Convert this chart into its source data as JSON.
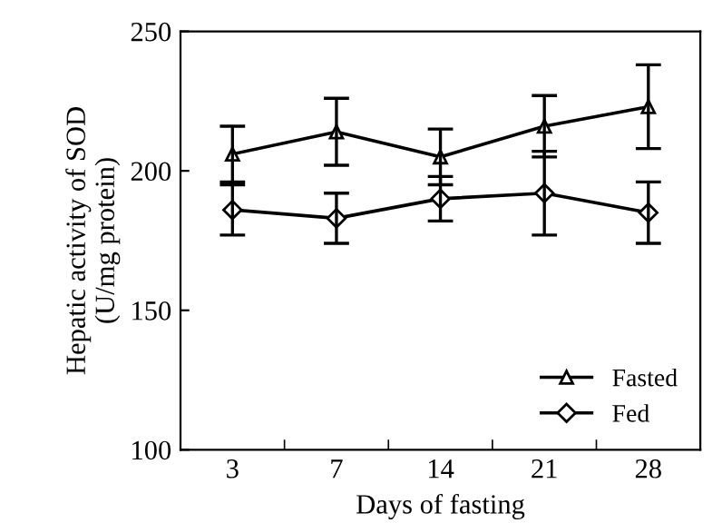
{
  "chart_data": {
    "type": "line",
    "xlabel": "Days of fasting",
    "ylabel": "Hepatic activity of SOD\n(U/mg protein)",
    "categories": [
      "3",
      "7",
      "14",
      "21",
      "28"
    ],
    "ylim": [
      100,
      250
    ],
    "yticks": [
      100,
      150,
      200,
      250
    ],
    "legend": "bottom right",
    "grid": false,
    "series": [
      {
        "name": "Fasted",
        "color": "#000000",
        "marker": "triangle",
        "values": [
          206,
          214,
          205,
          216,
          223
        ],
        "errors": [
          10,
          12,
          10,
          11,
          15
        ]
      },
      {
        "name": "Fed",
        "color": "#000000",
        "marker": "diamond",
        "values": [
          186,
          183,
          190,
          192,
          185
        ],
        "errors": [
          9,
          9,
          8,
          15,
          11
        ]
      }
    ]
  }
}
